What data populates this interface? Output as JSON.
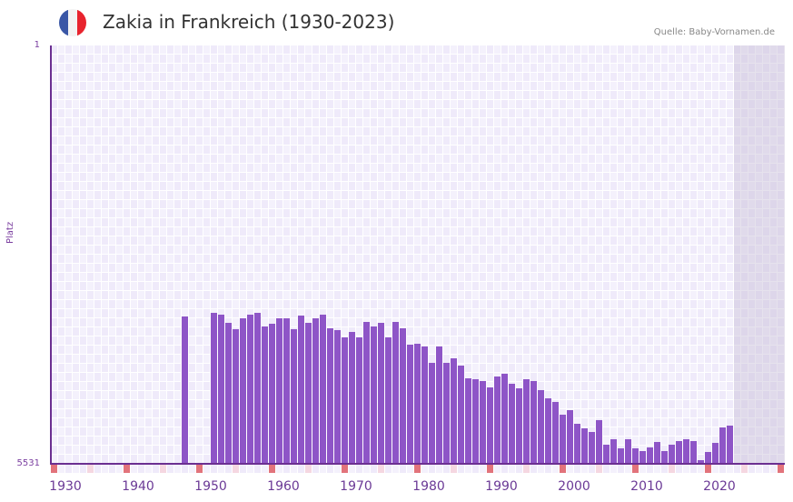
{
  "header": {
    "title": "Zakia in Frankreich (1930-2023)",
    "source": "Quelle: Baby-Vornamen.de",
    "flag": {
      "name": "france-flag",
      "colors": [
        "#3a57a6",
        "#f3f3f3",
        "#e8242e"
      ]
    }
  },
  "colors": {
    "bar": "#8e55c7",
    "axis": "#6b2f91",
    "grid_cell_a": "#efeafa",
    "grid_cell_b": "#f4f1fc",
    "decade_marker": "#e2737b",
    "half_decade_marker": "#f5d7e1"
  },
  "chart_data": {
    "type": "bar",
    "title": "Zakia in Frankreich (1930-2023)",
    "xlabel": "",
    "ylabel": "Platz",
    "y_inverted": true,
    "ylim": [
      1,
      5531
    ],
    "yticks": [
      1,
      5531
    ],
    "xlim": [
      1930,
      2030
    ],
    "xticks": [
      1930,
      1940,
      1950,
      1960,
      1970,
      1980,
      1990,
      2000,
      2010,
      2020
    ],
    "grid": true,
    "legend": null,
    "categories": [
      1948,
      1952,
      1953,
      1954,
      1955,
      1956,
      1957,
      1958,
      1959,
      1960,
      1961,
      1962,
      1963,
      1964,
      1965,
      1966,
      1967,
      1968,
      1969,
      1970,
      1971,
      1972,
      1973,
      1974,
      1975,
      1976,
      1977,
      1978,
      1979,
      1980,
      1981,
      1982,
      1983,
      1984,
      1985,
      1986,
      1987,
      1988,
      1989,
      1990,
      1991,
      1992,
      1993,
      1994,
      1995,
      1996,
      1997,
      1998,
      1999,
      2000,
      2001,
      2002,
      2003,
      2004,
      2005,
      2006,
      2007,
      2008,
      2009,
      2010,
      2011,
      2012,
      2013,
      2014,
      2015,
      2016,
      2017,
      2018,
      2019,
      2020,
      2021,
      2022,
      2023
    ],
    "values": [
      3583,
      3535,
      3559,
      3667,
      3752,
      3607,
      3559,
      3535,
      3715,
      3679,
      3607,
      3607,
      3752,
      3571,
      3667,
      3607,
      3559,
      3739,
      3763,
      3860,
      3787,
      3860,
      3655,
      3715,
      3667,
      3860,
      3655,
      3739,
      3956,
      3944,
      3980,
      4197,
      3980,
      4197,
      4136,
      4232,
      4400,
      4412,
      4436,
      4521,
      4376,
      4340,
      4473,
      4533,
      4412,
      4436,
      4557,
      4665,
      4713,
      4881,
      4821,
      5001,
      5061,
      5109,
      4953,
      5278,
      5206,
      5326,
      5206,
      5326,
      5362,
      5314,
      5242,
      5362,
      5278,
      5230,
      5206,
      5230,
      5483,
      5374,
      5254,
      5049,
      5025
    ],
    "shaded_future_range": [
      2024,
      2030
    ]
  }
}
